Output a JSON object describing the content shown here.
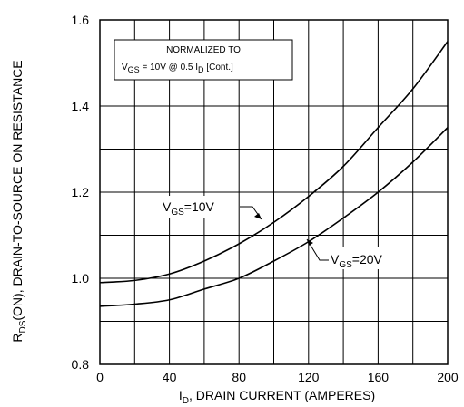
{
  "chart_data": {
    "type": "line",
    "xlabel": "I",
    "xlabel_subscript": "D",
    "xlabel_rest": ", DRAIN CURRENT (AMPERES)",
    "ylabel": "R",
    "ylabel_subscript": "DS",
    "ylabel_rest": "(ON), DRAIN-TO-SOURCE ON RESISTANCE",
    "xlim": [
      0,
      200
    ],
    "ylim": [
      0.8,
      1.6
    ],
    "x_ticks": [
      0,
      40,
      80,
      120,
      160,
      200
    ],
    "x_tick_labels": [
      "0",
      "40",
      "80",
      "120",
      "160",
      "200"
    ],
    "y_ticks": [
      0.8,
      1.0,
      1.2,
      1.4,
      1.6
    ],
    "y_tick_labels": [
      "0.8",
      "1.0",
      "1.2",
      "1.4",
      "1.6"
    ],
    "grid": true,
    "grid_x_step": 20,
    "grid_y_step": 0.1,
    "note": {
      "line1": "NORMALIZED TO",
      "v": "V",
      "v_sub": "GS",
      "mid": " = 10V  @  0.5  I",
      "i_sub": "D",
      "end": " [Cont.]"
    },
    "series": [
      {
        "name": "VGS=10V",
        "label_main": "V",
        "label_sub": "GS",
        "label_rest": "=10V",
        "x": [
          0,
          20,
          40,
          60,
          80,
          100,
          120,
          140,
          160,
          180,
          200
        ],
        "y": [
          0.99,
          0.995,
          1.01,
          1.04,
          1.08,
          1.13,
          1.19,
          1.26,
          1.35,
          1.44,
          1.55
        ]
      },
      {
        "name": "VGS=20V",
        "label_main": "V",
        "label_sub": "GS",
        "label_rest": "=20V",
        "x": [
          0,
          20,
          40,
          60,
          80,
          100,
          120,
          140,
          160,
          180,
          200
        ],
        "y": [
          0.935,
          0.94,
          0.95,
          0.975,
          1.0,
          1.04,
          1.085,
          1.14,
          1.2,
          1.27,
          1.35
        ]
      }
    ]
  }
}
